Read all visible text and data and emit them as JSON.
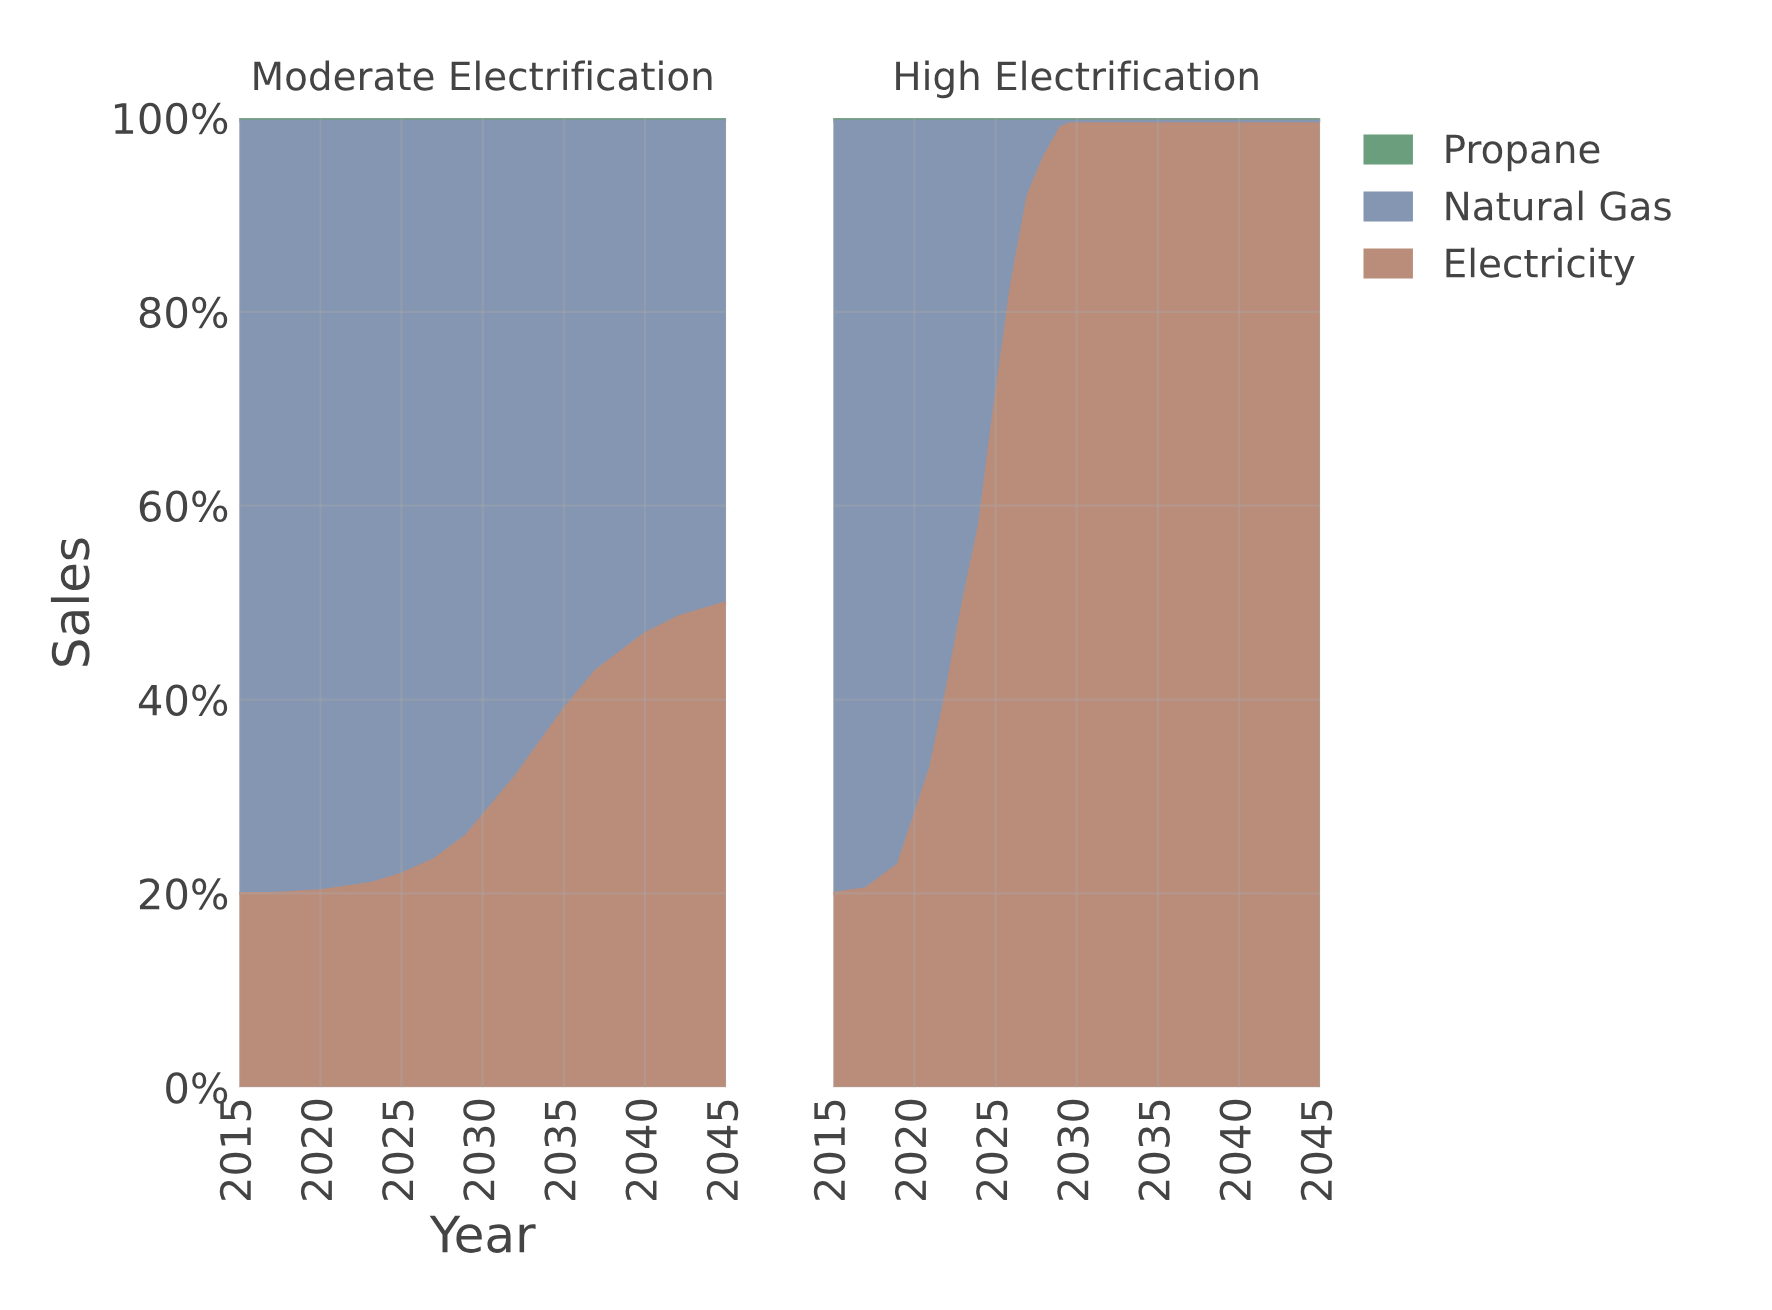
{
  "chart_data": [
    {
      "type": "area",
      "stacked": true,
      "title": "Moderate Electrification",
      "xlabel": "Year",
      "ylabel": "Sales",
      "x": [
        2015,
        2017,
        2020,
        2023,
        2025,
        2027,
        2029,
        2030,
        2032,
        2035,
        2037,
        2040,
        2042,
        2045
      ],
      "series": [
        {
          "color": "#ba8d7b",
          "values": [
            20,
            20,
            20.3,
            21,
            22,
            23.5,
            26,
            28,
            32,
            39,
            43,
            46.8,
            48.5,
            50
          ]
        },
        {
          "color": "#8496b2",
          "values": [
            79.7,
            79.7,
            79.4,
            78.7,
            77.7,
            76.2,
            73.7,
            71.7,
            67.7,
            60.7,
            56.7,
            52.9,
            51.2,
            49.7
          ]
        },
        {
          "color": "#6a9e7c",
          "values": [
            0.3,
            0.3,
            0.3,
            0.3,
            0.3,
            0.3,
            0.3,
            0.3,
            0.3,
            0.3,
            0.3,
            0.3,
            0.3,
            0.3
          ]
        }
      ],
      "xlim": [
        2015,
        2045
      ],
      "xticks": [
        2015,
        2020,
        2025,
        2030,
        2035,
        2040,
        2045
      ],
      "ylim": [
        0,
        100
      ],
      "yticks": [
        {
          "value": 0,
          "label": "0%"
        },
        {
          "value": 20,
          "label": "20%"
        },
        {
          "value": 40,
          "label": "40%"
        },
        {
          "value": 60,
          "label": "60%"
        },
        {
          "value": 80,
          "label": "80%"
        },
        {
          "value": 100,
          "label": "100%"
        }
      ],
      "grid": true
    },
    {
      "type": "area",
      "stacked": true,
      "title": "High Electrification",
      "x": [
        2015,
        2017,
        2019,
        2020,
        2021,
        2022,
        2023,
        2024,
        2025,
        2026,
        2027,
        2028,
        2029,
        2030,
        2035,
        2040,
        2045
      ],
      "series": [
        {
          "name": "Electricity",
          "color": "#ba8d7b",
          "values": [
            20,
            20.5,
            23,
            28,
            33,
            41,
            50,
            58,
            71,
            83,
            92,
            96,
            99,
            99.7,
            99.7,
            99.7,
            99.7
          ]
        },
        {
          "name": "Natural Gas",
          "color": "#8496b2",
          "values": [
            79.7,
            79.2,
            76.7,
            71.7,
            66.7,
            58.7,
            49.7,
            41.7,
            28.7,
            16.7,
            7.7,
            3.7,
            0.7,
            0,
            0,
            0,
            0
          ]
        },
        {
          "name": "Propane",
          "color": "#6a9e7c",
          "values": [
            0.3,
            0.3,
            0.3,
            0.3,
            0.3,
            0.3,
            0.3,
            0.3,
            0.3,
            0.3,
            0.3,
            0.3,
            0.3,
            0.3,
            0.3,
            0.3,
            0.3
          ]
        }
      ],
      "xlim": [
        2015,
        2045
      ],
      "xticks": [
        2015,
        2020,
        2025,
        2030,
        2035,
        2040,
        2045
      ],
      "ylim": [
        0,
        100
      ],
      "yticks": [
        {
          "value": 0,
          "label": null
        },
        {
          "value": 20,
          "label": null
        },
        {
          "value": 40,
          "label": null
        },
        {
          "value": 60,
          "label": null
        },
        {
          "value": 80,
          "label": null
        },
        {
          "value": 100,
          "label": null
        }
      ],
      "tick_labels": "x",
      "grid": true,
      "legend": "top right"
    }
  ]
}
